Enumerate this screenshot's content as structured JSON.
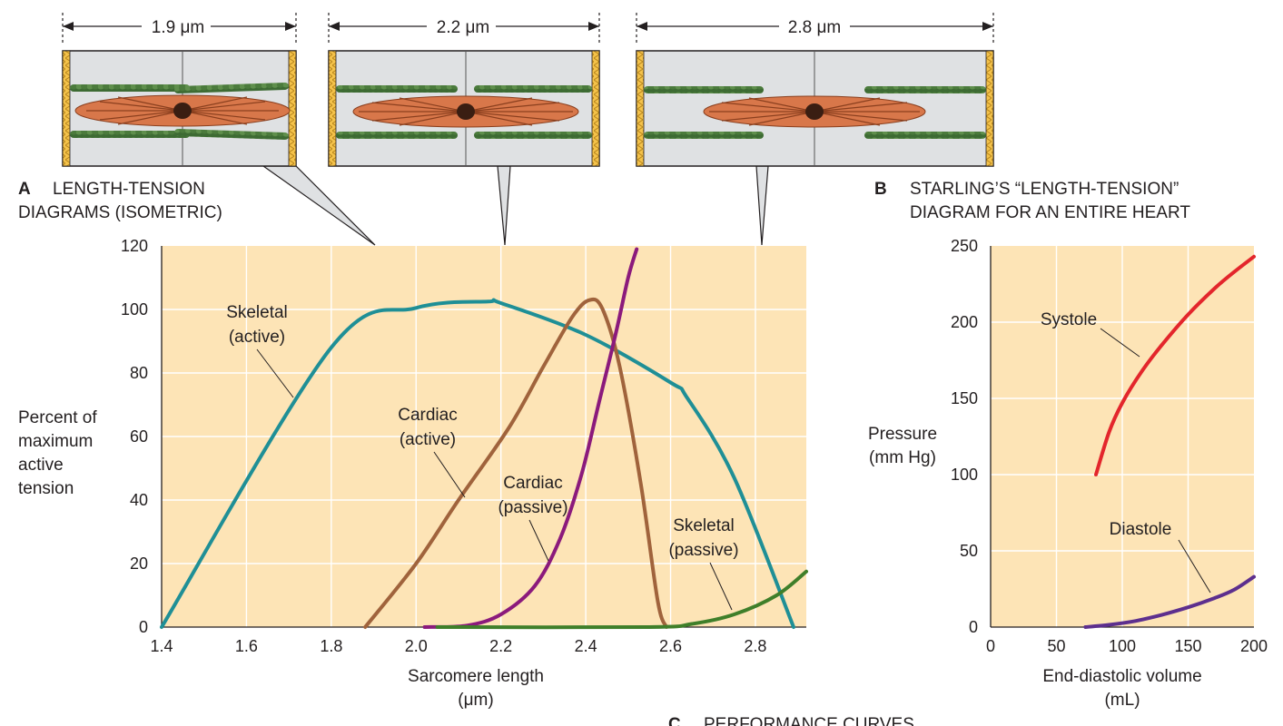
{
  "sarcomeres": {
    "dimensions": [
      "1.9 μm",
      "2.2 μm",
      "2.8 μm"
    ]
  },
  "chart_data": [
    {
      "type": "line",
      "panel_letter": "A",
      "title_lines": [
        "LENGTH-TENSION",
        "DIAGRAMS (ISOMETRIC)"
      ],
      "xlabel_lines": [
        "Sarcomere length",
        "(μm)"
      ],
      "ylabel_lines": [
        "Percent of",
        "maximum",
        "active",
        "tension"
      ],
      "xlim": [
        1.4,
        2.92
      ],
      "ylim": [
        0,
        120
      ],
      "x_ticks": [
        "1.4",
        "1.6",
        "1.8",
        "2.0",
        "2.2",
        "2.4",
        "2.6",
        "2.8"
      ],
      "y_ticks": [
        "0",
        "20",
        "40",
        "60",
        "80",
        "100",
        "120"
      ],
      "grid": true,
      "background": "#fde4b6",
      "series": [
        {
          "name": "Skeletal (active)",
          "label_lines": [
            "Skeletal",
            "(active)"
          ],
          "color": "#1f8f96",
          "points": [
            [
              1.4,
              0
            ],
            [
              1.8,
              88
            ],
            [
              2.0,
              100.5
            ],
            [
              2.17,
              102.5
            ],
            [
              2.2,
              102
            ],
            [
              2.4,
              92
            ],
            [
              2.6,
              77
            ],
            [
              2.64,
              72
            ],
            [
              2.75,
              47
            ],
            [
              2.89,
              0
            ]
          ]
        },
        {
          "name": "Cardiac (active)",
          "label_lines": [
            "Cardiac",
            "(active)"
          ],
          "color": "#a0633c",
          "points": [
            [
              1.88,
              0
            ],
            [
              2.0,
              20
            ],
            [
              2.1,
              40
            ],
            [
              2.22,
              63
            ],
            [
              2.3,
              82
            ],
            [
              2.37,
              98
            ],
            [
              2.41,
              103
            ],
            [
              2.44,
              100
            ],
            [
              2.48,
              82
            ],
            [
              2.53,
              45
            ],
            [
              2.57,
              8
            ],
            [
              2.59,
              0
            ]
          ]
        },
        {
          "name": "Cardiac (passive)",
          "label_lines": [
            "Cardiac",
            "(passive)"
          ],
          "color": "#8b1a7c",
          "points": [
            [
              2.02,
              0
            ],
            [
              2.12,
              0.5
            ],
            [
              2.2,
              4
            ],
            [
              2.28,
              13
            ],
            [
              2.34,
              28
            ],
            [
              2.39,
              48
            ],
            [
              2.43,
              70
            ],
            [
              2.47,
              92
            ],
            [
              2.5,
              110
            ],
            [
              2.52,
              119
            ]
          ]
        },
        {
          "name": "Skeletal (passive)",
          "label_lines": [
            "Skeletal",
            "(passive)"
          ],
          "color": "#3f7f2a",
          "points": [
            [
              2.05,
              0
            ],
            [
              2.55,
              0
            ],
            [
              2.65,
              1
            ],
            [
              2.75,
              4
            ],
            [
              2.85,
              10
            ],
            [
              2.92,
              17.5
            ]
          ]
        }
      ]
    },
    {
      "type": "line",
      "panel_letter": "B",
      "title_lines": [
        "STARLING’S “LENGTH-TENSION”",
        "DIAGRAM FOR AN ENTIRE HEART"
      ],
      "xlabel_lines": [
        "End-diastolic volume",
        "(mL)"
      ],
      "ylabel_lines": [
        "Pressure",
        "(mm Hg)"
      ],
      "xlim": [
        0,
        200
      ],
      "ylim": [
        0,
        250
      ],
      "x_ticks": [
        "0",
        "50",
        "100",
        "150",
        "200"
      ],
      "y_ticks": [
        "0",
        "50",
        "100",
        "150",
        "200",
        "250"
      ],
      "grid": true,
      "background": "#fde4b6",
      "series": [
        {
          "name": "Systole",
          "color": "#e3262c",
          "points": [
            [
              80,
              100
            ],
            [
              90,
              128
            ],
            [
              100,
              147
            ],
            [
              115,
              168
            ],
            [
              130,
              185
            ],
            [
              150,
              205
            ],
            [
              170,
              222
            ],
            [
              185,
              233
            ],
            [
              200,
              243
            ]
          ]
        },
        {
          "name": "Diastole",
          "color": "#5d2f8e",
          "points": [
            [
              72,
              0
            ],
            [
              90,
              1.5
            ],
            [
              110,
              4
            ],
            [
              130,
              8
            ],
            [
              150,
              13
            ],
            [
              170,
              19
            ],
            [
              185,
              24.5
            ],
            [
              200,
              33
            ]
          ]
        }
      ]
    }
  ],
  "panel_c": {
    "letter": "C",
    "title": "PERFORMANCE CURVES"
  }
}
